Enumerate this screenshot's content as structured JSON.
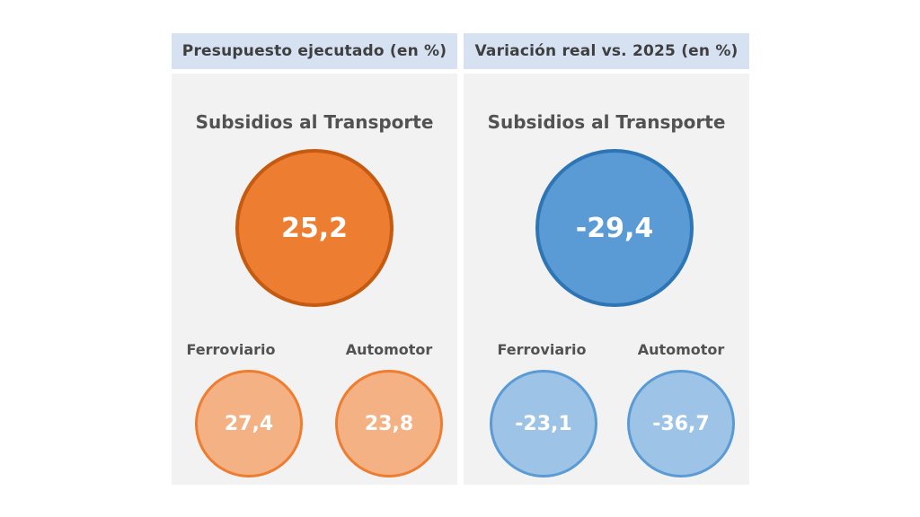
{
  "colors": {
    "header_bg": "#d6e1f1",
    "panel_bg": "#f2f2f2",
    "orange_main": "#ed7d31",
    "orange_main_border": "#c55a11",
    "orange_light": "#f4b183",
    "orange_light_border": "#ed7d31",
    "blue_main": "#5b9bd5",
    "blue_main_border": "#2e75b6",
    "blue_light": "#9dc3e6",
    "blue_light_border": "#5b9bd5"
  },
  "left_panel": {
    "header": "Presupuesto ejecutado (en %)",
    "title": "Subsidios al Transporte",
    "main_value": "25,2",
    "items": [
      {
        "label": "Ferroviario",
        "value": "27,4"
      },
      {
        "label": "Automotor",
        "value": "23,8"
      }
    ]
  },
  "right_panel": {
    "header": "Variación real vs. 2025 (en %)",
    "title": "Subsidios al Transporte",
    "main_value": "-29,4",
    "items": [
      {
        "label": "Ferroviario",
        "value": "-23,1"
      },
      {
        "label": "Automotor",
        "value": "-36,7"
      }
    ]
  }
}
